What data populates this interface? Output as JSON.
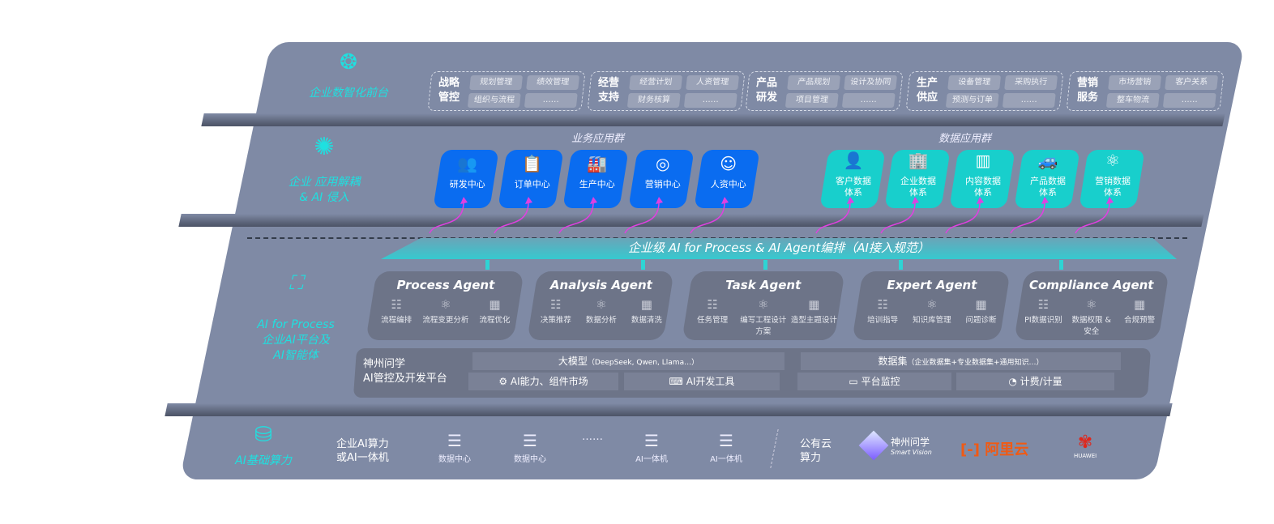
{
  "layer_front": {
    "label": "企业数智化前台",
    "icon": "brain-icon",
    "groups": [
      {
        "title": [
          "战略",
          "管控"
        ],
        "items": [
          "规划管理",
          "绩效管理",
          "组织与流程",
          "……"
        ]
      },
      {
        "title": [
          "经营",
          "支持"
        ],
        "items": [
          "经营计划",
          "人资管理",
          "财务核算",
          "……"
        ]
      },
      {
        "title": [
          "产品",
          "研发"
        ],
        "items": [
          "产品规划",
          "设计及协同",
          "项目管理",
          "……"
        ]
      },
      {
        "title": [
          "生产",
          "供应"
        ],
        "items": [
          "设备管理",
          "采购执行",
          "预测与订单",
          "……"
        ]
      },
      {
        "title": [
          "营销",
          "服务"
        ],
        "items": [
          "市场营销",
          "客户关系",
          "整车物流",
          "……"
        ]
      }
    ]
  },
  "layer_apps": {
    "label": [
      "企业 应用解耦",
      "& AI 侵入"
    ],
    "icon": "molecule-icon",
    "business_title": "业务应用群",
    "data_title": "数据应用群",
    "business": [
      {
        "label": "研发中心",
        "icon": "users-icon"
      },
      {
        "label": "订单中心",
        "icon": "clipboard-icon"
      },
      {
        "label": "生产中心",
        "icon": "factory-icon"
      },
      {
        "label": "营销中心",
        "icon": "target-icon"
      },
      {
        "label": "人资中心",
        "icon": "person-wave-icon"
      }
    ],
    "data": [
      {
        "label": [
          "客户数据",
          "体系"
        ],
        "icon": "user-icon"
      },
      {
        "label": [
          "企业数据",
          "体系"
        ],
        "icon": "building-icon"
      },
      {
        "label": [
          "内容数据",
          "体系"
        ],
        "icon": "books-icon"
      },
      {
        "label": [
          "产品数据",
          "体系"
        ],
        "icon": "car-icon"
      },
      {
        "label": [
          "营销数据",
          "体系"
        ],
        "icon": "atom-icon"
      }
    ],
    "accent_blue": "#0a6cf0",
    "accent_teal": "#18cfcc",
    "arrow_color": "#e040e0"
  },
  "orchestration": {
    "banner": "企业级 AI for Process & AI Agent编排（AI接入规范）"
  },
  "layer_ai": {
    "label": [
      "AI for Process",
      "企业AI平台及",
      "AI智能体"
    ],
    "icon": "face-scan-icon",
    "agents": [
      {
        "name": "Process Agent",
        "items": [
          "流程编排",
          "流程变更分析",
          "流程优化"
        ]
      },
      {
        "name": "Analysis Agent",
        "items": [
          "决策推荐",
          "数据分析",
          "数据清洗"
        ]
      },
      {
        "name": "Task Agent",
        "items": [
          "任务管理",
          "编写工程设计方案",
          "造型主题设计"
        ]
      },
      {
        "name": "Expert Agent",
        "items": [
          "培训指导",
          "知识库管理",
          "问题诊断"
        ]
      },
      {
        "name": "Compliance Agent",
        "items": [
          "PI数据识别",
          "数据权限 & 安全",
          "合规预警"
        ]
      }
    ],
    "platform": {
      "title": [
        "神州问学",
        "AI管控及开发平台"
      ],
      "model": "大模型",
      "model_note": "（DeepSeek, Qwen, Llama…）",
      "dataset": "数据集",
      "dataset_note": "（企业数据集+专业数据集+通用知识…）",
      "market": "AI能力、组件市场",
      "devtools": "AI开发工具",
      "monitor": "平台监控",
      "billing": "计费/计量"
    }
  },
  "layer_infra": {
    "label": "AI基础算力",
    "icon": "database-icon",
    "enterprise": [
      "企业AI算力",
      "或AI一体机"
    ],
    "items": [
      "数据中心",
      "数据中心",
      "……",
      "AI一体机",
      "AI一体机"
    ],
    "public": [
      "公有云",
      "算力"
    ],
    "vendors": [
      "神州问学",
      "Smart Vision",
      "阿里云",
      "HUAWEI"
    ]
  }
}
